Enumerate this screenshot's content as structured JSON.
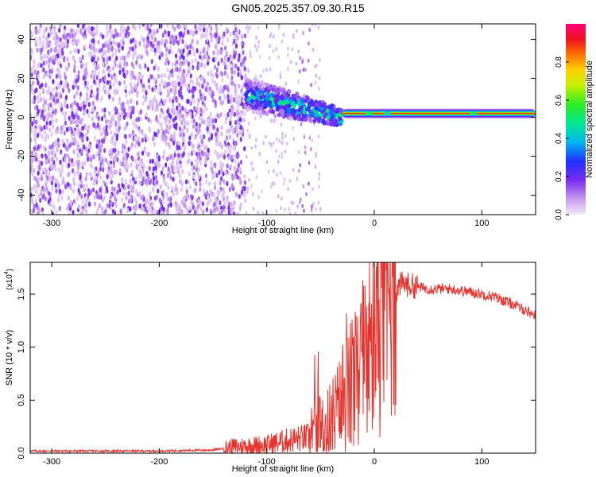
{
  "page_title": "GN05.2025.357.09.30.R15",
  "chart_data": [
    {
      "type": "heatmap",
      "title": "GN05.2025.357.09.30.R15",
      "xlabel": "Height of straight line (km)",
      "ylabel": "Frequency (Hz)",
      "xlim": [
        -320,
        150
      ],
      "ylim": [
        -50,
        48
      ],
      "xticks": [
        -300,
        -200,
        -100,
        0,
        100
      ],
      "xtick_labels": [
        "-300",
        "-200",
        "-100",
        "0",
        "100"
      ],
      "yticks": [
        -40,
        -20,
        0,
        20,
        40
      ],
      "ytick_labels": [
        "-40",
        "-20",
        "0",
        "20",
        "40"
      ],
      "colorbar": {
        "label": "Normalized spectral amplitude",
        "range": [
          0,
          1
        ],
        "ticks": [
          0.0,
          0.2,
          0.4,
          0.6,
          0.8
        ],
        "tick_labels": [
          "0.0",
          "0.2",
          "0.4",
          "0.6",
          "0.8"
        ]
      },
      "features": [
        {
          "name": "broadband noise",
          "x_range": [
            -320,
            -120
          ],
          "freq_range": [
            -50,
            48
          ],
          "amplitude": 0.1
        },
        {
          "name": "transition cluster",
          "x_range": [
            -120,
            -30
          ],
          "freq_center_start": 12,
          "freq_center_end": 0,
          "amplitude": 0.5
        },
        {
          "name": "line at ~2 Hz",
          "x_range": [
            -30,
            150
          ],
          "frequency": 2,
          "amplitude": 0.9
        }
      ]
    },
    {
      "type": "line",
      "xlabel": "Height of straight line (km)",
      "ylabel": "SNR (10 * v/v)",
      "yscale_label": "(x10",
      "yscale_exp": "4",
      "xlim": [
        -320,
        150
      ],
      "ylim": [
        0,
        1.8
      ],
      "xticks": [
        -300,
        -200,
        -100,
        0,
        100
      ],
      "xtick_labels": [
        "-300",
        "-200",
        "-100",
        "0",
        "100"
      ],
      "yticks": [
        0.0,
        0.5,
        1.0,
        1.5
      ],
      "ytick_labels": [
        "0.0",
        "0.5",
        "1.0",
        "1.5"
      ],
      "series": [
        {
          "name": "SNR",
          "color": "#e8322c",
          "x": [
            -320,
            -250,
            -200,
            -150,
            -130,
            -100,
            -80,
            -60,
            -45,
            -35,
            -25,
            -15,
            -5,
            5,
            15,
            25,
            35,
            50,
            70,
            90,
            110,
            130,
            150
          ],
          "y": [
            0.02,
            0.02,
            0.02,
            0.03,
            0.06,
            0.08,
            0.12,
            0.15,
            0.2,
            0.35,
            0.55,
            0.7,
            0.95,
            1.25,
            1.45,
            1.6,
            1.58,
            1.55,
            1.55,
            1.52,
            1.48,
            1.4,
            1.3
          ]
        }
      ]
    }
  ]
}
